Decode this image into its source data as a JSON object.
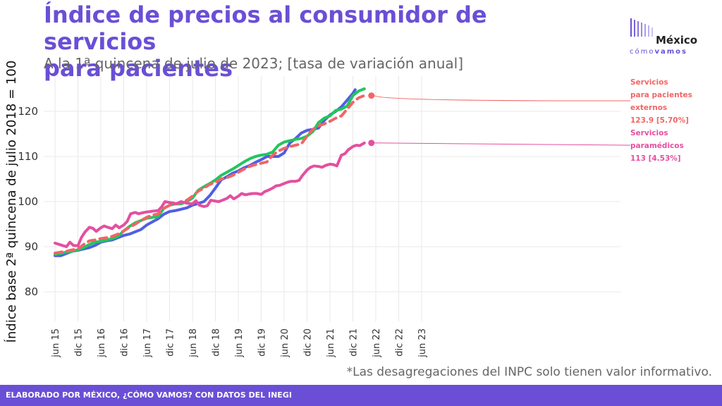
{
  "title": "Índice de precios al consumidor de servicios\n para pacientes",
  "subtitle": "A la 1ª quincena de julio de 2023; [tasa de variación anual]",
  "ylabel": "Índice base 2ª quincena de julio 2018 = 100",
  "note": "*Las desagregaciones del INPC solo tienen valor informativo.",
  "footer": "ELABORADO POR MÉXICO, ¿CÓMO VAMOS? CON DATOS DEL INEGI",
  "logo": {
    "line1": "México",
    "line2_a": "cómo",
    "line2_b": "vamos"
  },
  "colors": {
    "brand": "#6a4fd6",
    "blue": "#4f5fe3",
    "green": "#22c55e",
    "red": "#f26565",
    "pink": "#e44fa0",
    "grid": "#e8e8e8"
  },
  "annotations": {
    "externos": "Servicios\npara pacientes\nexternos\n123.9 [5.70%]",
    "paramedicos": "Servicios\nparamédicos\n113 [4.53%]"
  },
  "chart_data": {
    "type": "line",
    "x_ticks": [
      "jun 15",
      "dic 15",
      "jun 16",
      "dic 16",
      "jun 17",
      "dic 17",
      "jun 18",
      "dic 18",
      "jun 19",
      "dic 19",
      "jun 20",
      "dic 20",
      "jun 21",
      "dic 21",
      "jun 22",
      "dic 22",
      "jun 23"
    ],
    "ylim": [
      75,
      127
    ],
    "y_ticks": [
      80,
      90,
      100,
      110,
      120
    ],
    "grid": true,
    "x_unit": "quincena (index from jun 15 = 0, one tick every 6 months)",
    "series": [
      {
        "key": "blue",
        "style": "solid",
        "points": [
          [
            0,
            88.0
          ],
          [
            0.5,
            88.0
          ],
          [
            1,
            88.5
          ],
          [
            1.5,
            89.0
          ],
          [
            2,
            89.2
          ],
          [
            2.5,
            89.5
          ],
          [
            3,
            89.8
          ],
          [
            3.5,
            90.3
          ],
          [
            4,
            91.0
          ],
          [
            4.5,
            91.3
          ],
          [
            5,
            91.5
          ],
          [
            5.5,
            92.0
          ],
          [
            6,
            92.5
          ],
          [
            6.5,
            92.8
          ],
          [
            7,
            93.3
          ],
          [
            7.5,
            93.8
          ],
          [
            8,
            94.8
          ],
          [
            8.5,
            95.5
          ],
          [
            9,
            96.2
          ],
          [
            9.5,
            97.2
          ],
          [
            10,
            97.8
          ],
          [
            10.5,
            98.0
          ],
          [
            11,
            98.3
          ],
          [
            11.5,
            98.6
          ],
          [
            12,
            99.2
          ],
          [
            12.5,
            99.6
          ],
          [
            13,
            100.0
          ],
          [
            13.5,
            101.3
          ],
          [
            14,
            103.0
          ],
          [
            14.5,
            104.8
          ],
          [
            15,
            105.5
          ],
          [
            15.5,
            106.3
          ],
          [
            16,
            106.8
          ],
          [
            16.5,
            107.5
          ],
          [
            17,
            108.0
          ],
          [
            17.5,
            108.7
          ],
          [
            18,
            109.3
          ],
          [
            18.5,
            110.0
          ],
          [
            19,
            110.0
          ],
          [
            19.5,
            110.0
          ],
          [
            20,
            110.8
          ],
          [
            20.5,
            113.0
          ],
          [
            21,
            114.0
          ],
          [
            21.5,
            115.2
          ],
          [
            22,
            115.8
          ],
          [
            22.5,
            116.0
          ],
          [
            23,
            116.3
          ],
          [
            23.5,
            118.0
          ],
          [
            24,
            119.2
          ],
          [
            24.5,
            120.0
          ],
          [
            25,
            121.0
          ],
          [
            25.5,
            122.5
          ],
          [
            26,
            124.0
          ],
          [
            26.2,
            124.8
          ]
        ]
      },
      {
        "key": "green",
        "style": "solid",
        "points": [
          [
            0,
            88.3
          ],
          [
            0.5,
            88.5
          ],
          [
            1,
            88.8
          ],
          [
            1.5,
            89.0
          ],
          [
            2,
            89.3
          ],
          [
            2.5,
            89.8
          ],
          [
            3,
            90.5
          ],
          [
            3.5,
            91.0
          ],
          [
            4,
            91.2
          ],
          [
            4.5,
            91.5
          ],
          [
            5,
            91.8
          ],
          [
            5.5,
            92.3
          ],
          [
            6,
            93.5
          ],
          [
            6.5,
            94.5
          ],
          [
            7,
            95.3
          ],
          [
            7.5,
            95.8
          ],
          [
            8,
            96.3
          ],
          [
            8.5,
            96.5
          ],
          [
            9,
            96.7
          ],
          [
            9.5,
            98.5
          ],
          [
            10,
            99.2
          ],
          [
            10.5,
            99.5
          ],
          [
            11,
            99.5
          ],
          [
            11.5,
            100.0
          ],
          [
            12,
            100.8
          ],
          [
            12.5,
            102.5
          ],
          [
            13,
            103.3
          ],
          [
            13.5,
            104.0
          ],
          [
            14,
            104.8
          ],
          [
            14.5,
            105.8
          ],
          [
            15,
            106.5
          ],
          [
            15.5,
            107.2
          ],
          [
            16,
            108.0
          ],
          [
            16.5,
            108.8
          ],
          [
            17,
            109.5
          ],
          [
            17.5,
            110.0
          ],
          [
            18,
            110.3
          ],
          [
            18.5,
            110.5
          ],
          [
            19,
            111.0
          ],
          [
            19.5,
            112.5
          ],
          [
            20,
            113.2
          ],
          [
            20.5,
            113.5
          ],
          [
            21,
            113.8
          ],
          [
            21.5,
            114.0
          ],
          [
            22,
            114.5
          ],
          [
            22.5,
            115.5
          ],
          [
            23,
            117.5
          ],
          [
            23.5,
            118.5
          ],
          [
            24,
            119.0
          ],
          [
            24.5,
            120.2
          ],
          [
            25,
            120.5
          ],
          [
            25.5,
            121.2
          ],
          [
            26,
            123.5
          ],
          [
            26.5,
            124.5
          ],
          [
            27,
            125.0
          ]
        ]
      },
      {
        "key": "red",
        "style": "dashed",
        "points": [
          [
            0,
            88.6
          ],
          [
            0.5,
            88.8
          ],
          [
            1,
            89.0
          ],
          [
            1.5,
            89.3
          ],
          [
            2,
            89.5
          ],
          [
            2.5,
            90.5
          ],
          [
            3,
            91.3
          ],
          [
            3.5,
            91.5
          ],
          [
            4,
            91.8
          ],
          [
            4.5,
            92.0
          ],
          [
            5,
            92.3
          ],
          [
            5.5,
            92.8
          ],
          [
            6,
            93.5
          ],
          [
            6.5,
            94.3
          ],
          [
            7,
            95.0
          ],
          [
            7.5,
            95.8
          ],
          [
            8,
            96.5
          ],
          [
            8.5,
            97.0
          ],
          [
            9,
            97.3
          ],
          [
            9.5,
            98.5
          ],
          [
            10,
            99.2
          ],
          [
            10.5,
            99.5
          ],
          [
            11,
            99.8
          ],
          [
            11.5,
            100.3
          ],
          [
            12,
            101.2
          ],
          [
            12.5,
            102.3
          ],
          [
            13,
            103.0
          ],
          [
            13.5,
            103.8
          ],
          [
            14,
            104.3
          ],
          [
            14.5,
            105.0
          ],
          [
            15,
            105.3
          ],
          [
            15.5,
            105.8
          ],
          [
            16,
            106.5
          ],
          [
            16.5,
            107.2
          ],
          [
            17,
            107.8
          ],
          [
            17.5,
            108.2
          ],
          [
            18,
            108.5
          ],
          [
            18.5,
            108.8
          ],
          [
            19,
            110.3
          ],
          [
            19.5,
            111.2
          ],
          [
            20,
            111.8
          ],
          [
            20.5,
            112.2
          ],
          [
            21,
            112.5
          ],
          [
            21.5,
            112.8
          ],
          [
            22,
            114.5
          ],
          [
            22.5,
            116.0
          ],
          [
            23,
            116.8
          ],
          [
            23.5,
            117.2
          ],
          [
            24,
            117.8
          ],
          [
            24.5,
            118.5
          ],
          [
            25,
            119.0
          ],
          [
            25.5,
            120.5
          ],
          [
            26,
            122.0
          ],
          [
            26.5,
            123.0
          ],
          [
            27,
            123.5
          ]
        ]
      },
      {
        "key": "pink",
        "style": "solid",
        "points": [
          [
            0,
            90.8
          ],
          [
            0.5,
            90.4
          ],
          [
            1,
            90.0
          ],
          [
            1.3,
            91.0
          ],
          [
            1.6,
            90.3
          ],
          [
            2,
            90.2
          ],
          [
            2.3,
            92.0
          ],
          [
            2.6,
            93.2
          ],
          [
            3,
            94.3
          ],
          [
            3.3,
            94.1
          ],
          [
            3.6,
            93.4
          ],
          [
            4,
            94.2
          ],
          [
            4.3,
            94.6
          ],
          [
            4.6,
            94.3
          ],
          [
            5,
            94.0
          ],
          [
            5.3,
            94.8
          ],
          [
            5.6,
            94.2
          ],
          [
            6,
            94.8
          ],
          [
            6.3,
            95.6
          ],
          [
            6.6,
            97.3
          ],
          [
            7,
            97.6
          ],
          [
            7.3,
            97.3
          ],
          [
            7.6,
            97.5
          ],
          [
            8,
            97.7
          ],
          [
            8.3,
            97.8
          ],
          [
            8.6,
            97.9
          ],
          [
            9,
            98.0
          ],
          [
            9.3,
            98.8
          ],
          [
            9.6,
            100.0
          ],
          [
            10,
            99.8
          ],
          [
            10.3,
            99.7
          ],
          [
            10.6,
            99.5
          ],
          [
            11,
            100.0
          ],
          [
            11.3,
            99.8
          ],
          [
            11.6,
            99.6
          ],
          [
            12,
            99.5
          ],
          [
            12.3,
            100.2
          ],
          [
            12.6,
            99.2
          ],
          [
            13,
            98.9
          ],
          [
            13.3,
            99.1
          ],
          [
            13.6,
            100.3
          ],
          [
            14,
            100.1
          ],
          [
            14.3,
            100.0
          ],
          [
            14.6,
            100.3
          ],
          [
            15,
            100.7
          ],
          [
            15.3,
            101.3
          ],
          [
            15.6,
            100.6
          ],
          [
            16,
            101.2
          ],
          [
            16.3,
            101.8
          ],
          [
            16.6,
            101.5
          ],
          [
            17,
            101.7
          ],
          [
            17.3,
            101.8
          ],
          [
            17.6,
            101.8
          ],
          [
            18,
            101.6
          ],
          [
            18.3,
            102.2
          ],
          [
            18.6,
            102.5
          ],
          [
            19,
            103.0
          ],
          [
            19.3,
            103.5
          ],
          [
            19.6,
            103.6
          ],
          [
            20,
            104.0
          ],
          [
            20.3,
            104.3
          ],
          [
            20.6,
            104.5
          ],
          [
            21,
            104.5
          ],
          [
            21.3,
            104.7
          ],
          [
            21.6,
            105.8
          ],
          [
            22,
            107.0
          ],
          [
            22.3,
            107.6
          ],
          [
            22.6,
            107.9
          ],
          [
            23,
            107.8
          ],
          [
            23.3,
            107.6
          ],
          [
            23.6,
            108.0
          ],
          [
            24,
            108.3
          ],
          [
            24.3,
            108.2
          ],
          [
            24.6,
            107.9
          ],
          [
            25,
            110.3
          ],
          [
            25.3,
            110.6
          ],
          [
            25.6,
            111.5
          ],
          [
            26,
            112.2
          ],
          [
            26.3,
            112.5
          ],
          [
            26.6,
            112.4
          ],
          [
            27,
            113.0
          ]
        ]
      }
    ]
  }
}
